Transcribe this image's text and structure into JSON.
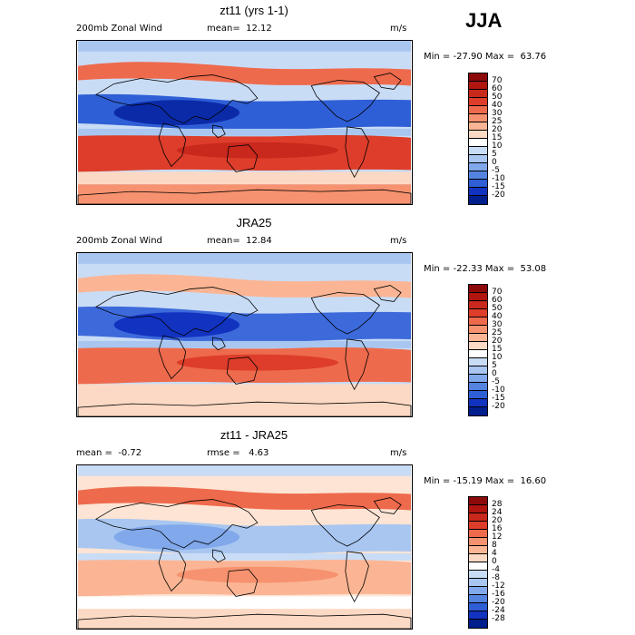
{
  "season": "JJA",
  "panels": [
    {
      "title": "zt11 (yrs 1-1)",
      "left": "200mb Zonal Wind",
      "stat": "mean=  12.12",
      "units": "m/s",
      "minmax": "Min = -27.90 Max =  63.76",
      "colorbar": {
        "labels": [
          "70",
          "60",
          "50",
          "40",
          "30",
          "25",
          "20",
          "15",
          "10",
          "5",
          "0",
          "-5",
          "-10",
          "-15",
          "-20"
        ],
        "colors": [
          "#8c0a0a",
          "#b0150f",
          "#c9281c",
          "#dd3d2a",
          "#ee6a4c",
          "#f6926f",
          "#fbb594",
          "#fcd9c4",
          "#ffffff",
          "#c9dcf5",
          "#a8c6f0",
          "#80a8ea",
          "#5584e0",
          "#2f5fd6",
          "#1232c0",
          "#001e8c"
        ]
      },
      "map_colors": {
        "background": "#c9dcf5",
        "jet_north": "#ee6a4c",
        "jet_south": "#dd3d2a",
        "south_core": "#c9281c",
        "tropical": "#2f5fd6",
        "tropical_core": "#0b2aa8",
        "polar": "#f6926f",
        "mid": "#a8c6f0",
        "light": "#fcd9c4"
      }
    },
    {
      "title": "JRA25",
      "left": "200mb Zonal Wind",
      "stat": "mean=  12.84",
      "units": "m/s",
      "minmax": "Min = -22.33 Max =  53.08",
      "colorbar": {
        "labels": [
          "70",
          "60",
          "50",
          "40",
          "30",
          "25",
          "20",
          "15",
          "10",
          "5",
          "0",
          "-5",
          "-10",
          "-15",
          "-20"
        ],
        "colors": [
          "#8c0a0a",
          "#b0150f",
          "#c9281c",
          "#dd3d2a",
          "#ee6a4c",
          "#f6926f",
          "#fbb594",
          "#fcd9c4",
          "#ffffff",
          "#c9dcf5",
          "#a8c6f0",
          "#80a8ea",
          "#5584e0",
          "#2f5fd6",
          "#1232c0",
          "#001e8c"
        ]
      },
      "map_colors": {
        "background": "#c9dcf5",
        "jet_north": "#fbb594",
        "jet_south": "#ee6a4c",
        "south_core": "#dd3d2a",
        "tropical": "#3d6adb",
        "tropical_core": "#1232c0",
        "polar": "#fcd9c4",
        "mid": "#a8c6f0",
        "light": "#fcd9c4"
      }
    },
    {
      "title": "zt11 - JRA25",
      "left": "mean =  -0.72",
      "stat": "rmse =   4.63",
      "units": "m/s",
      "minmax": "Min = -15.19 Max =  16.60",
      "colorbar": {
        "labels": [
          "28",
          "24",
          "20",
          "16",
          "12",
          "8",
          "4",
          "0",
          "-4",
          "-8",
          "-12",
          "-16",
          "-20",
          "-24",
          "-28"
        ],
        "colors": [
          "#8c0a0a",
          "#b0150f",
          "#c9281c",
          "#dd3d2a",
          "#ee6a4c",
          "#f6926f",
          "#fbb594",
          "#fcd9c4",
          "#ffffff",
          "#c9dcf5",
          "#a8c6f0",
          "#80a8ea",
          "#5584e0",
          "#2f5fd6",
          "#1232c0",
          "#001e8c"
        ]
      },
      "map_colors": {
        "background": "#fde4d4",
        "jet_north": "#ee6a4c",
        "jet_south": "#fbb594",
        "south_core": "#f6926f",
        "tropical": "#a8c6f0",
        "tropical_core": "#80a8ea",
        "polar": "#fcd9c4",
        "mid": "#c9dcf5",
        "light": "#ffffff"
      }
    }
  ]
}
